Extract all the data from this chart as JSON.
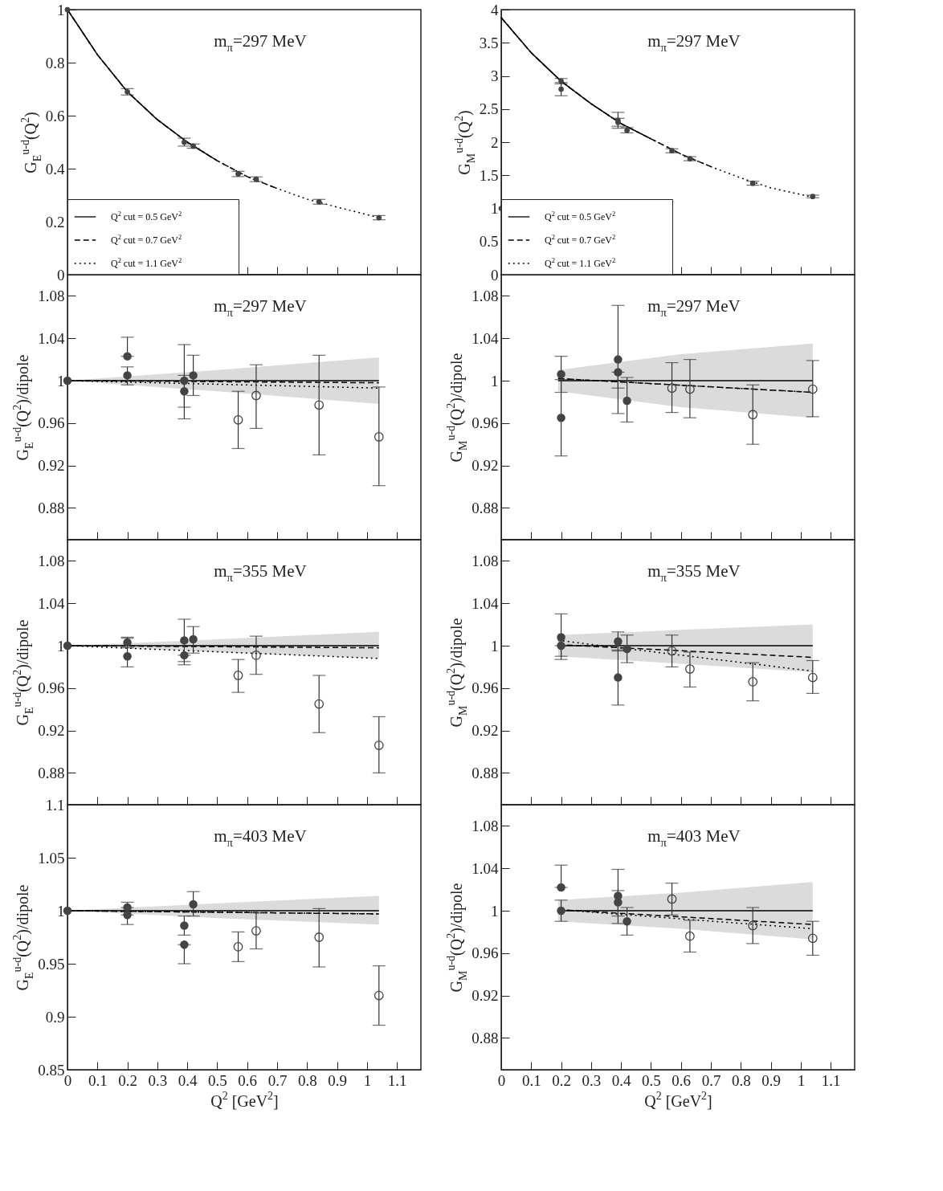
{
  "chart_data": [
    {
      "type": "line",
      "ylabel": "G$_{E}$$^{u-d}$(Q$^{2}$)",
      "annotations": [
        "m$_{π}$=297 MeV"
      ],
      "xlim": [
        0,
        1.18
      ],
      "xticks": [
        0,
        0.1,
        0.2,
        0.3,
        0.4,
        0.5,
        0.6,
        0.7,
        0.8,
        0.9,
        1,
        1.1
      ],
      "ylim": [
        0,
        1
      ],
      "yticks": [
        0,
        0.2,
        0.4,
        0.6,
        0.8,
        1
      ],
      "tick_labels": "y",
      "legend": "bottom left",
      "series": [
        {
          "type": "scatter",
          "marker": "circle",
          "color": "#444444",
          "x": [
            0,
            0.2,
            0.39,
            0.42,
            0.57,
            0.63,
            0.84,
            1.04
          ],
          "values": [
            1,
            0.69,
            0.5,
            0.485,
            0.38,
            0.36,
            0.275,
            0.215
          ],
          "errors": [
            null,
            0.012,
            0.015,
            0.008,
            0.01,
            0.009,
            0.009,
            0.008
          ]
        },
        {
          "type": "line",
          "name": "Q$^{2}$ cut = 0.5 GeV$^{2}$",
          "color": "#000000",
          "line_style": "solid",
          "x": [
            0,
            0.1,
            0.2,
            0.3,
            0.4,
            0.5
          ],
          "values": [
            1,
            0.83,
            0.69,
            0.585,
            0.5,
            0.43
          ]
        },
        {
          "type": "line",
          "name": "Q$^{2}$ cut = 0.7 GeV$^{2}$",
          "color": "#000000",
          "line_style": "dashed",
          "x": [
            0,
            0.1,
            0.2,
            0.3,
            0.4,
            0.5,
            0.6,
            0.7
          ],
          "values": [
            1,
            0.83,
            0.69,
            0.585,
            0.5,
            0.43,
            0.37,
            0.325
          ]
        },
        {
          "type": "line",
          "name": "Q$^{2}$ cut = 1.1 GeV$^{2}$",
          "color": "#000000",
          "line_style": "dotted",
          "x": [
            0,
            0.1,
            0.2,
            0.3,
            0.4,
            0.5,
            0.6,
            0.7,
            0.8,
            0.9,
            1.04
          ],
          "values": [
            1,
            0.83,
            0.69,
            0.585,
            0.5,
            0.43,
            0.37,
            0.325,
            0.285,
            0.255,
            0.215
          ]
        }
      ]
    },
    {
      "type": "line",
      "ylabel": "G$_{M}$$^{u-d}$(Q$^{2}$)",
      "annotations": [
        "m$_{π}$=297 MeV"
      ],
      "xlim": [
        0,
        1.18
      ],
      "xticks": [
        0,
        0.1,
        0.2,
        0.3,
        0.4,
        0.5,
        0.6,
        0.7,
        0.8,
        0.9,
        1,
        1.1
      ],
      "ylim": [
        0,
        4
      ],
      "yticks": [
        0,
        0.5,
        1,
        1.5,
        2,
        2.5,
        3,
        3.5,
        4
      ],
      "tick_labels": "y",
      "legend": "bottom left",
      "series": [
        {
          "type": "scatter",
          "marker": "circle",
          "color": "#444444",
          "x": [
            0,
            0.2,
            0.2,
            0.39,
            0.39,
            0.42,
            0.57,
            0.63,
            0.84,
            1.04
          ],
          "values": [
            1,
            2.92,
            2.8,
            2.33,
            2.3,
            2.18,
            1.87,
            1.75,
            1.38,
            1.18
          ],
          "errors": [
            null,
            0.04,
            0.1,
            0.12,
            0.06,
            0.04,
            0.03,
            0.03,
            0.03,
            0.02
          ]
        },
        {
          "type": "line",
          "name": "Q$^{2}$ cut = 0.5 GeV$^{2}$",
          "color": "#000000",
          "line_style": "solid",
          "x": [
            0,
            0.1,
            0.2,
            0.3,
            0.4,
            0.5
          ],
          "values": [
            3.88,
            3.35,
            2.92,
            2.58,
            2.28,
            2.05
          ]
        },
        {
          "type": "line",
          "name": "Q$^{2}$ cut = 0.7 GeV$^{2}$",
          "color": "#000000",
          "line_style": "dashed",
          "x": [
            0,
            0.1,
            0.2,
            0.3,
            0.4,
            0.5,
            0.6,
            0.7
          ],
          "values": [
            3.88,
            3.35,
            2.92,
            2.58,
            2.28,
            2.05,
            1.82,
            1.63
          ]
        },
        {
          "type": "line",
          "name": "Q$^{2}$ cut = 1.1 GeV$^{2}$",
          "color": "#000000",
          "line_style": "dotted",
          "x": [
            0,
            0.1,
            0.2,
            0.3,
            0.4,
            0.5,
            0.6,
            0.7,
            0.8,
            0.9,
            1.04
          ],
          "values": [
            3.88,
            3.35,
            2.92,
            2.58,
            2.28,
            2.05,
            1.82,
            1.63,
            1.46,
            1.31,
            1.17
          ]
        }
      ]
    },
    {
      "type": "line",
      "ylabel": "G$_{E}$$^{u-d}$(Q$^{2}$)/dipole",
      "annotations": [
        "m$_{π}$=297 MeV"
      ],
      "xlim": [
        0,
        1.18
      ],
      "xticks": [
        0,
        0.1,
        0.2,
        0.3,
        0.4,
        0.5,
        0.6,
        0.7,
        0.8,
        0.9,
        1,
        1.1
      ],
      "ylim": [
        0.85,
        1.1
      ],
      "yticks": [
        0.88,
        0.92,
        0.96,
        1,
        1.04,
        1.08
      ],
      "tick_labels": "y",
      "series": [
        {
          "type": "scatter",
          "marker": "circle",
          "color": "#444444",
          "x": [
            0,
            0.2,
            0.2,
            0.39,
            0.39,
            0.42
          ],
          "values": [
            1,
            1.023,
            1.005,
            1,
            0.99,
            1.005
          ],
          "errors": [
            null,
            [
              1.023,
              1.041
            ],
            [
              0.996,
              1.013
            ],
            [
              0.964,
              1.034
            ],
            [
              0.975,
              1.005
            ],
            [
              0.986,
              1.024
            ]
          ]
        },
        {
          "type": "scatter",
          "marker": "circle",
          "color": "#444444",
          "x": [
            0.57,
            0.63,
            0.84,
            1.04
          ],
          "values": [
            0.963,
            0.986,
            0.977,
            0.947
          ],
          "errors": [
            [
              0.936,
              0.99
            ],
            [
              0.955,
              1.015
            ],
            [
              0.93,
              1.024
            ],
            [
              0.901,
              0.994
            ]
          ]
        },
        {
          "type": "line",
          "color": "#000000",
          "line_style": "solid",
          "x": [
            0,
            0.5,
            1.04
          ],
          "values": [
            1,
            1,
            1
          ],
          "lower": [
            1,
            0.99,
            0.978
          ],
          "upper": [
            1,
            1.01,
            1.022
          ]
        },
        {
          "type": "line",
          "color": "#000000",
          "line_style": "dashed",
          "x": [
            0,
            1.04
          ],
          "values": [
            1,
            0.998
          ]
        },
        {
          "type": "line",
          "color": "#000000",
          "line_style": "dotted",
          "x": [
            0,
            1.04
          ],
          "values": [
            1,
            0.993
          ]
        }
      ]
    },
    {
      "type": "line",
      "ylabel": "G$_{M}$$^{u-d}$(Q$^{2}$)/dipole",
      "annotations": [
        "m$_{π}$=297 MeV"
      ],
      "xlim": [
        0,
        1.18
      ],
      "xticks": [
        0,
        0.1,
        0.2,
        0.3,
        0.4,
        0.5,
        0.6,
        0.7,
        0.8,
        0.9,
        1,
        1.1
      ],
      "ylim": [
        0.85,
        1.1
      ],
      "yticks": [
        0.88,
        0.92,
        0.96,
        1,
        1.04,
        1.08
      ],
      "tick_labels": "y",
      "series": [
        {
          "type": "scatter",
          "marker": "circle",
          "color": "#444444",
          "x": [
            0.2,
            0.2,
            0.39,
            0.39,
            0.42
          ],
          "values": [
            1.006,
            0.965,
            1.02,
            1.008,
            0.981
          ],
          "errors": [
            [
              0.989,
              1.023
            ],
            [
              0.929,
              1.001
            ],
            [
              0.969,
              1.071
            ],
            [
              0.993,
              1.008
            ],
            [
              0.961,
              1.003
            ]
          ]
        },
        {
          "type": "scatter",
          "marker": "circle",
          "color": "#444444",
          "x": [
            0.57,
            0.63,
            0.84,
            1.04
          ],
          "values": [
            0.993,
            0.992,
            0.968,
            0.992
          ],
          "errors": [
            [
              0.97,
              1.017
            ],
            [
              0.965,
              1.02
            ],
            [
              0.94,
              0.996
            ],
            [
              0.966,
              1.019
            ]
          ]
        },
        {
          "type": "line",
          "color": "#000000",
          "line_style": "solid",
          "x": [
            0.19,
            0.6,
            1.04
          ],
          "values": [
            1,
            1,
            1
          ],
          "lower": [
            0.99,
            0.975,
            0.965
          ],
          "upper": [
            1.01,
            1.025,
            1.035
          ]
        },
        {
          "type": "line",
          "color": "#000000",
          "line_style": "dashed",
          "x": [
            0.19,
            1.04
          ],
          "values": [
            1.002,
            0.989
          ]
        },
        {
          "type": "line",
          "color": "#000000",
          "line_style": "dotted",
          "x": [
            0.19,
            1.04
          ],
          "values": [
            1.002,
            0.989
          ]
        }
      ]
    },
    {
      "type": "line",
      "ylabel": "G$_{E}$$^{u-d}$(Q$^{2}$)/dipole",
      "annotations": [
        "m$_{π}$=355 MeV"
      ],
      "xlim": [
        0,
        1.18
      ],
      "xticks": [
        0,
        0.1,
        0.2,
        0.3,
        0.4,
        0.5,
        0.6,
        0.7,
        0.8,
        0.9,
        1,
        1.1
      ],
      "ylim": [
        0.85,
        1.1
      ],
      "yticks": [
        0.88,
        0.92,
        0.96,
        1,
        1.04,
        1.08
      ],
      "tick_labels": "y",
      "series": [
        {
          "type": "scatter",
          "marker": "circle",
          "color": "#444444",
          "x": [
            0,
            0.2,
            0.2,
            0.39,
            0.39,
            0.42
          ],
          "values": [
            1,
            1.003,
            0.99,
            1.005,
            0.991,
            1.006
          ],
          "errors": [
            null,
            [
              0.998,
              1.008
            ],
            [
              0.98,
              1.007
            ],
            [
              0.985,
              1.025
            ],
            [
              0.982,
              0.991
            ],
            [
              0.993,
              1.018
            ]
          ]
        },
        {
          "type": "scatter",
          "marker": "circle",
          "color": "#444444",
          "x": [
            0.57,
            0.63,
            0.84,
            1.04
          ],
          "values": [
            0.972,
            0.991,
            0.945,
            0.906
          ],
          "errors": [
            [
              0.956,
              0.987
            ],
            [
              0.973,
              1.009
            ],
            [
              0.918,
              0.972
            ],
            [
              0.88,
              0.933
            ]
          ]
        },
        {
          "type": "line",
          "color": "#000000",
          "line_style": "solid",
          "x": [
            0,
            0.5,
            1.04
          ],
          "values": [
            1,
            1,
            1
          ],
          "lower": [
            1,
            0.994,
            0.988
          ],
          "upper": [
            1,
            1.006,
            1.013
          ]
        },
        {
          "type": "line",
          "color": "#000000",
          "line_style": "dashed",
          "x": [
            0,
            1.04
          ],
          "values": [
            1,
            0.998
          ]
        },
        {
          "type": "line",
          "color": "#000000",
          "line_style": "dotted",
          "x": [
            0,
            1.04
          ],
          "values": [
            1,
            0.988
          ]
        }
      ]
    },
    {
      "type": "line",
      "ylabel": "G$_{M}$$^{u-d}$(Q$^{2}$)/dipole",
      "annotations": [
        "m$_{π}$=355 MeV"
      ],
      "xlim": [
        0,
        1.18
      ],
      "xticks": [
        0,
        0.1,
        0.2,
        0.3,
        0.4,
        0.5,
        0.6,
        0.7,
        0.8,
        0.9,
        1,
        1.1
      ],
      "ylim": [
        0.85,
        1.1
      ],
      "yticks": [
        0.88,
        0.92,
        0.96,
        1,
        1.04,
        1.08
      ],
      "tick_labels": "y",
      "series": [
        {
          "type": "scatter",
          "marker": "circle",
          "color": "#444444",
          "x": [
            0.2,
            0.2,
            0.39,
            0.39,
            0.42
          ],
          "values": [
            1.008,
            1,
            1.004,
            0.97,
            0.997
          ],
          "errors": [
            [
              0.99,
              1.03
            ],
            [
              0.987,
              1
            ],
            [
              0.995,
              1.013
            ],
            [
              0.944,
              0.996
            ],
            [
              0.984,
              1.01
            ]
          ]
        },
        {
          "type": "scatter",
          "marker": "circle",
          "color": "#444444",
          "x": [
            0.57,
            0.63,
            0.84,
            1.04
          ],
          "values": [
            0.995,
            0.978,
            0.966,
            0.97
          ],
          "errors": [
            [
              0.98,
              1.01
            ],
            [
              0.961,
              0.994
            ],
            [
              0.948,
              0.984
            ],
            [
              0.955,
              0.986
            ]
          ]
        },
        {
          "type": "line",
          "color": "#000000",
          "line_style": "solid",
          "x": [
            0.19,
            0.6,
            1.04
          ],
          "values": [
            1,
            1,
            1
          ],
          "lower": [
            0.99,
            0.983,
            0.975
          ],
          "upper": [
            1.01,
            1.015,
            1.02
          ]
        },
        {
          "type": "line",
          "color": "#000000",
          "line_style": "dashed",
          "x": [
            0.19,
            1.04
          ],
          "values": [
            1.001,
            0.989
          ]
        },
        {
          "type": "line",
          "color": "#000000",
          "line_style": "dotted",
          "x": [
            0.19,
            1.04
          ],
          "values": [
            1.005,
            0.976
          ]
        }
      ]
    },
    {
      "type": "line",
      "xlabel": "Q$^{2}$ [GeV$^{2}$]",
      "ylabel": "G$_{E}$$^{u-d}$(Q$^{2}$)/dipole",
      "annotations": [
        "m$_{π}$=403 MeV"
      ],
      "xlim": [
        0,
        1.18
      ],
      "xticks": [
        0,
        0.1,
        0.2,
        0.3,
        0.4,
        0.5,
        0.6,
        0.7,
        0.8,
        0.9,
        1,
        1.1
      ],
      "ylim": [
        0.85,
        1.1
      ],
      "yticks": [
        0.85,
        0.9,
        0.95,
        1,
        1.05,
        1.1
      ],
      "series": [
        {
          "type": "scatter",
          "marker": "circle",
          "color": "#444444",
          "x": [
            0,
            0.2,
            0.2,
            0.39,
            0.39,
            0.42
          ],
          "values": [
            1,
            1.003,
            0.996,
            0.986,
            0.968,
            1.006
          ],
          "errors": [
            null,
            [
              1.003,
              1.008
            ],
            [
              0.987,
              0.996
            ],
            [
              0.977,
              0.995
            ],
            [
              0.95,
              0.968
            ],
            [
              0.995,
              1.018
            ]
          ]
        },
        {
          "type": "scatter",
          "marker": "circle",
          "color": "#444444",
          "x": [
            0.57,
            0.63,
            0.84,
            1.04
          ],
          "values": [
            0.966,
            0.981,
            0.975,
            0.92
          ],
          "errors": [
            [
              0.952,
              0.98
            ],
            [
              0.964,
              0.998
            ],
            [
              0.947,
              1.002
            ],
            [
              0.892,
              0.948
            ]
          ]
        },
        {
          "type": "line",
          "color": "#000000",
          "line_style": "solid",
          "x": [
            0,
            0.5,
            1.04
          ],
          "values": [
            1,
            1,
            1
          ],
          "lower": [
            1,
            0.993,
            0.987
          ],
          "upper": [
            1,
            1.007,
            1.014
          ]
        },
        {
          "type": "line",
          "color": "#000000",
          "line_style": "dashed",
          "x": [
            0,
            1.04
          ],
          "values": [
            1,
            0.997
          ]
        },
        {
          "type": "line",
          "color": "#000000",
          "line_style": "dotted",
          "x": [
            0,
            1.04
          ],
          "values": [
            1,
            0.997
          ]
        }
      ]
    },
    {
      "type": "line",
      "xlabel": "Q$^{2}$ [GeV$^{2}$]",
      "ylabel": "G$_{M}$$^{u-d}$(Q$^{2}$)/dipole",
      "annotations": [
        "m$_{π}$=403 MeV"
      ],
      "xlim": [
        0,
        1.18
      ],
      "xticks": [
        0,
        0.1,
        0.2,
        0.3,
        0.4,
        0.5,
        0.6,
        0.7,
        0.8,
        0.9,
        1,
        1.1
      ],
      "ylim": [
        0.85,
        1.1
      ],
      "yticks": [
        0.88,
        0.92,
        0.96,
        1,
        1.04,
        1.08
      ],
      "series": [
        {
          "type": "scatter",
          "marker": "circle",
          "color": "#444444",
          "x": [
            0.2,
            0.2,
            0.39,
            0.39,
            0.42
          ],
          "values": [
            1.022,
            1,
            1.014,
            1.008,
            0.99
          ],
          "errors": [
            [
              1.022,
              1.043
            ],
            [
              0.99,
              1.01
            ],
            [
              0.988,
              1.039
            ],
            [
              0.995,
              1.019
            ],
            [
              0.977,
              1.003
            ]
          ]
        },
        {
          "type": "scatter",
          "marker": "circle",
          "color": "#444444",
          "x": [
            0.57,
            0.63,
            0.84,
            1.04
          ],
          "values": [
            1.011,
            0.976,
            0.986,
            0.974
          ],
          "errors": [
            [
              0.996,
              1.026
            ],
            [
              0.961,
              0.991
            ],
            [
              0.969,
              1.003
            ],
            [
              0.958,
              0.99
            ]
          ]
        },
        {
          "type": "line",
          "color": "#000000",
          "line_style": "solid",
          "x": [
            0.19,
            0.6,
            1.04
          ],
          "values": [
            1,
            1,
            1
          ],
          "lower": [
            0.99,
            0.983,
            0.973
          ],
          "upper": [
            1.01,
            1.017,
            1.027
          ]
        },
        {
          "type": "line",
          "color": "#000000",
          "line_style": "dashed",
          "x": [
            0.19,
            1.04
          ],
          "values": [
            1.001,
            0.987
          ]
        },
        {
          "type": "line",
          "color": "#000000",
          "line_style": "dotted",
          "x": [
            0.19,
            1.04
          ],
          "values": [
            1.001,
            0.983
          ]
        }
      ]
    }
  ]
}
